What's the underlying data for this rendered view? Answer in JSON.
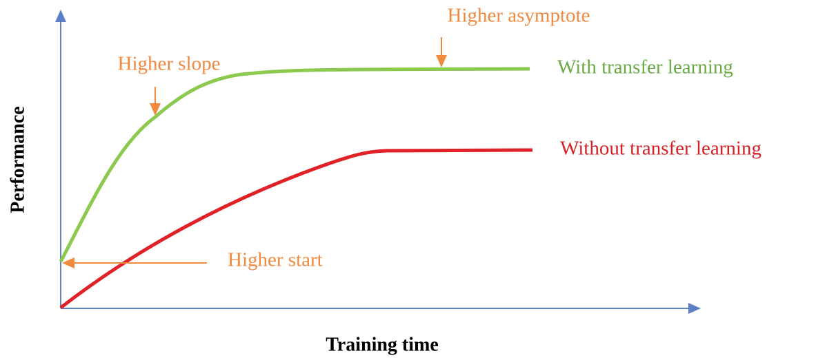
{
  "axes": {
    "x_label": "Training time",
    "y_label": "Performance"
  },
  "curves": [
    {
      "label": "With transfer learning"
    },
    {
      "label": "Without transfer learning"
    }
  ],
  "annotations": [
    {
      "text": "Higher asymptote"
    },
    {
      "text": "Higher slope"
    },
    {
      "text": "Higher start"
    }
  ]
}
